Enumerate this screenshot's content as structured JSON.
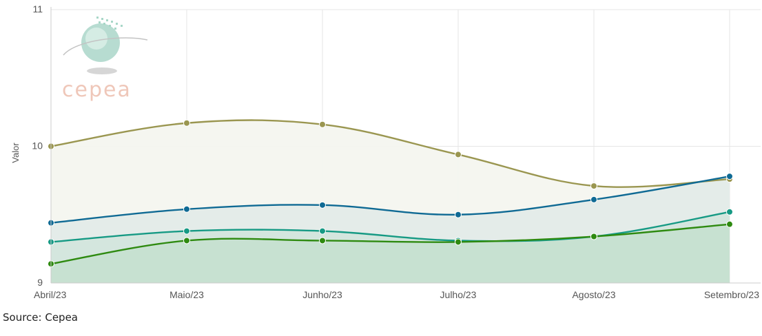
{
  "source_text": "Source: Cepea",
  "logo_text": "cepea",
  "colors": {
    "olive": "#9a9650",
    "blue": "#0f6a94",
    "teal": "#169a84",
    "green": "#2e8a10",
    "grid": "#e6e6e6",
    "axis": "#cccccc",
    "logo_text": "#eab5a2"
  },
  "chart_data": {
    "type": "area",
    "ylabel": "Valor",
    "xlabel": "",
    "categories": [
      "Abril/23",
      "Maio/23",
      "Junho/23",
      "Julho/23",
      "Agosto/23",
      "Setembro/23"
    ],
    "ylim": [
      9,
      11
    ],
    "yticks": [
      "9",
      "10",
      "11"
    ],
    "grid": true,
    "legend": "none",
    "series": [
      {
        "color": "#9a9650",
        "fill": "#f4f5ef",
        "values": [
          10.0,
          10.17,
          10.16,
          9.94,
          9.71,
          9.76
        ]
      },
      {
        "color": "#0f6a94",
        "fill": "#e3ebe8",
        "values": [
          9.44,
          9.54,
          9.57,
          9.5,
          9.61,
          9.78
        ]
      },
      {
        "color": "#169a84",
        "fill": "#d3e6dd",
        "values": [
          9.3,
          9.38,
          9.38,
          9.31,
          9.34,
          9.52
        ]
      },
      {
        "color": "#2e8a10",
        "fill": "#c6e0d0",
        "values": [
          9.14,
          9.31,
          9.31,
          9.3,
          9.34,
          9.43
        ]
      }
    ]
  }
}
